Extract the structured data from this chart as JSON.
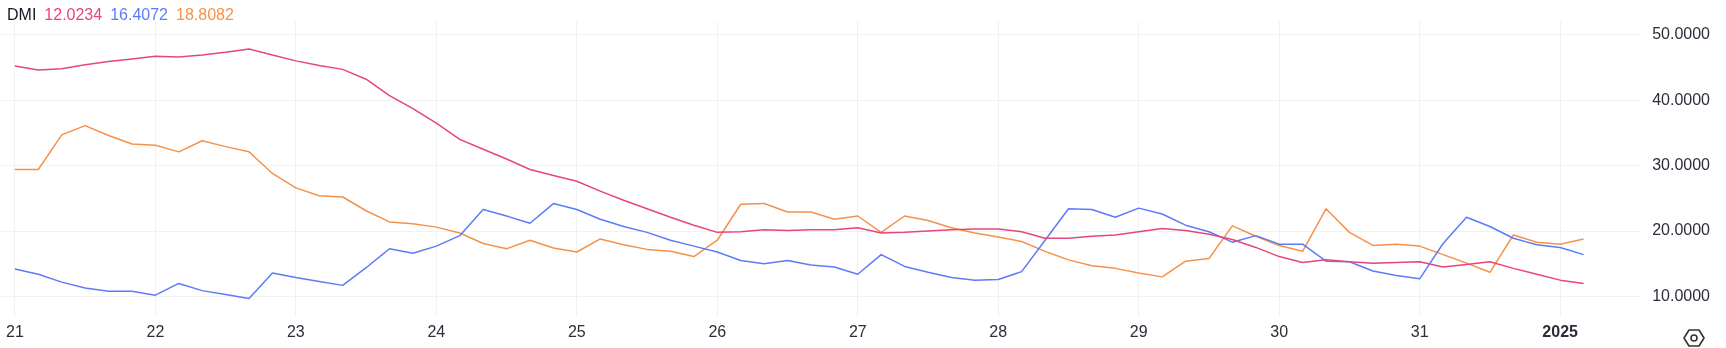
{
  "chart_data": {
    "type": "line",
    "title": "DMI",
    "legend": "top left",
    "grid": true,
    "marker": "none",
    "line_style": "solid",
    "x": [
      "2024-12-21T00:00",
      "2024-12-21T04:00",
      "2024-12-21T08:00",
      "2024-12-21T12:00",
      "2024-12-21T16:00",
      "2024-12-21T20:00",
      "2024-12-22T00:00",
      "2024-12-22T04:00",
      "2024-12-22T08:00",
      "2024-12-22T12:00",
      "2024-12-22T16:00",
      "2024-12-22T20:00",
      "2024-12-23T00:00",
      "2024-12-23T04:00",
      "2024-12-23T08:00",
      "2024-12-23T12:00",
      "2024-12-23T16:00",
      "2024-12-23T20:00",
      "2024-12-24T00:00",
      "2024-12-24T04:00",
      "2024-12-24T08:00",
      "2024-12-24T12:00",
      "2024-12-24T16:00",
      "2024-12-24T20:00",
      "2024-12-25T00:00",
      "2024-12-25T04:00",
      "2024-12-25T08:00",
      "2024-12-25T12:00",
      "2024-12-25T16:00",
      "2024-12-25T20:00",
      "2024-12-26T00:00",
      "2024-12-26T04:00",
      "2024-12-26T08:00",
      "2024-12-26T12:00",
      "2024-12-26T16:00",
      "2024-12-26T20:00",
      "2024-12-27T00:00",
      "2024-12-27T04:00",
      "2024-12-27T08:00",
      "2024-12-27T12:00",
      "2024-12-27T16:00",
      "2024-12-27T20:00",
      "2024-12-28T00:00",
      "2024-12-28T04:00",
      "2024-12-28T08:00",
      "2024-12-28T12:00",
      "2024-12-28T16:00",
      "2024-12-28T20:00",
      "2024-12-29T00:00",
      "2024-12-29T04:00",
      "2024-12-29T08:00",
      "2024-12-29T12:00",
      "2024-12-29T16:00",
      "2024-12-29T20:00",
      "2024-12-30T00:00",
      "2024-12-30T04:00",
      "2024-12-30T08:00",
      "2024-12-30T12:00",
      "2024-12-30T16:00",
      "2024-12-30T20:00",
      "2024-12-31T00:00",
      "2024-12-31T04:00",
      "2024-12-31T08:00",
      "2024-12-31T12:00",
      "2024-12-31T16:00",
      "2024-12-31T20:00",
      "2025-01-01T00:00",
      "2025-01-01T04:00"
    ],
    "series": [
      {
        "name": "12.0234",
        "color": "#e8457a",
        "values": [
          45.2,
          44.6,
          44.8,
          45.4,
          45.9,
          46.3,
          46.7,
          46.6,
          46.9,
          47.3,
          47.8,
          46.9,
          46.0,
          45.3,
          44.7,
          43.2,
          40.7,
          38.7,
          36.5,
          34.0,
          32.5,
          31.0,
          29.4,
          28.5,
          27.6,
          26.1,
          24.7,
          23.4,
          22.1,
          20.9,
          19.8,
          19.9,
          20.2,
          20.1,
          20.2,
          20.2,
          20.5,
          19.7,
          19.8,
          20.0,
          20.2,
          20.3,
          20.3,
          19.9,
          18.9,
          18.9,
          19.2,
          19.4,
          19.9,
          20.4,
          20.1,
          19.5,
          18.7,
          17.5,
          16.1,
          15.2,
          15.6,
          15.3,
          15.1,
          15.2,
          15.3,
          14.5,
          14.9,
          15.3,
          14.3,
          13.4,
          12.5,
          12.0
        ]
      },
      {
        "name": "16.4072",
        "color": "#5b7cf6",
        "values": [
          14.2,
          13.4,
          12.2,
          11.3,
          10.8,
          10.8,
          10.2,
          12.0,
          10.9,
          10.3,
          9.7,
          13.6,
          12.9,
          12.3,
          11.7,
          14.4,
          17.3,
          16.6,
          17.7,
          19.3,
          23.3,
          22.3,
          21.2,
          24.2,
          23.3,
          21.8,
          20.7,
          19.8,
          18.6,
          17.7,
          16.8,
          15.5,
          15.0,
          15.5,
          14.8,
          14.5,
          13.4,
          16.4,
          14.6,
          13.7,
          12.9,
          12.5,
          12.6,
          13.8,
          18.6,
          23.4,
          23.3,
          22.1,
          23.5,
          22.6,
          20.9,
          19.9,
          18.3,
          19.3,
          18.0,
          18.0,
          15.4,
          15.3,
          13.9,
          13.2,
          12.7,
          18.1,
          22.1,
          20.7,
          18.9,
          17.9,
          17.5,
          16.4
        ]
      },
      {
        "name": "18.8082",
        "color": "#f5924a",
        "values": [
          29.4,
          29.4,
          34.7,
          36.1,
          34.6,
          33.3,
          33.1,
          32.1,
          33.8,
          32.9,
          32.1,
          28.8,
          26.6,
          25.4,
          25.2,
          23.1,
          21.4,
          21.1,
          20.6,
          19.7,
          18.1,
          17.3,
          18.6,
          17.4,
          16.8,
          18.8,
          17.9,
          17.2,
          16.9,
          16.1,
          18.6,
          24.1,
          24.2,
          22.9,
          22.9,
          21.8,
          22.3,
          19.8,
          22.3,
          21.6,
          20.5,
          19.7,
          19.1,
          18.4,
          16.9,
          15.6,
          14.7,
          14.3,
          13.6,
          13.0,
          15.4,
          15.8,
          20.8,
          19.2,
          17.8,
          16.9,
          23.4,
          19.8,
          17.8,
          18.0,
          17.7,
          16.4,
          15.1,
          13.7,
          19.4,
          18.3,
          18.0,
          18.8
        ]
      }
    ],
    "xlim": [
      "2024-12-20T21:40",
      "2025-01-01T13:40"
    ],
    "xticks": [
      {
        "value": "2024-12-21",
        "label": "21"
      },
      {
        "value": "2024-12-22",
        "label": "22"
      },
      {
        "value": "2024-12-23",
        "label": "23"
      },
      {
        "value": "2024-12-24",
        "label": "24"
      },
      {
        "value": "2024-12-25",
        "label": "25"
      },
      {
        "value": "2024-12-26",
        "label": "26"
      },
      {
        "value": "2024-12-27",
        "label": "27"
      },
      {
        "value": "2024-12-28",
        "label": "28"
      },
      {
        "value": "2024-12-29",
        "label": "29"
      },
      {
        "value": "2024-12-30",
        "label": "30"
      },
      {
        "value": "2024-12-31",
        "label": "31"
      },
      {
        "value": "2025-01-01",
        "label": "2025"
      }
    ],
    "ylim": [
      6.9,
      52
    ],
    "yticks": [
      {
        "value": 10,
        "label": "10.0000"
      },
      {
        "value": 20,
        "label": "20.0000"
      },
      {
        "value": 30,
        "label": "30.0000"
      },
      {
        "value": 40,
        "label": "40.0000"
      },
      {
        "value": 50,
        "label": "50.0000"
      }
    ]
  }
}
